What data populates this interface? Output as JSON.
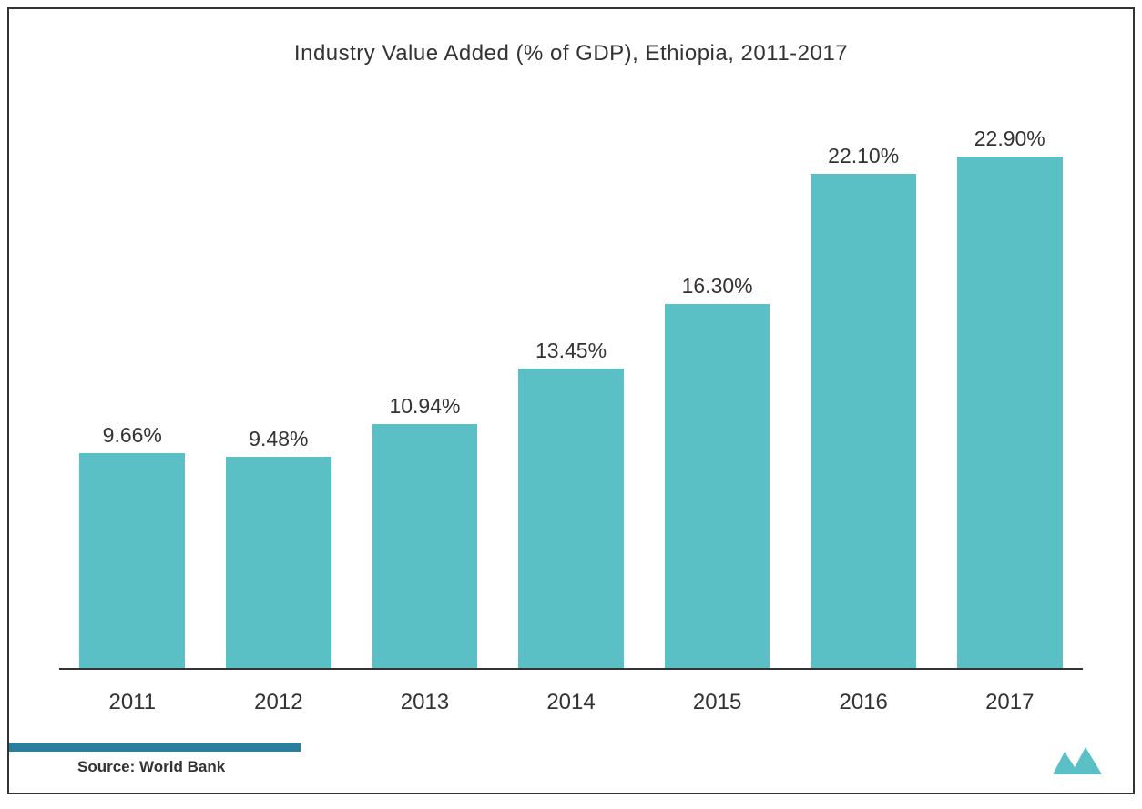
{
  "chart": {
    "type": "bar",
    "title": "Industry Value Added (% of GDP), Ethiopia, 2011-2017",
    "title_fontsize": 24,
    "title_color": "#333333",
    "categories": [
      "2011",
      "2012",
      "2013",
      "2014",
      "2015",
      "2016",
      "2017"
    ],
    "values": [
      9.66,
      9.48,
      10.94,
      13.45,
      16.3,
      22.1,
      22.9
    ],
    "labels": [
      "9.66%",
      "9.48%",
      "10.94%",
      "13.45%",
      "16.30%",
      "22.10%",
      "22.90%"
    ],
    "bar_color": "#5bc0c6",
    "max_value": 22.9,
    "y_scale_max": 25.0,
    "label_fontsize": 23,
    "xlabel_fontsize": 24,
    "axis_color": "#333333",
    "background_color": "#ffffff",
    "border_color": "#333333",
    "bar_width_percent": 72
  },
  "footer": {
    "source": "Source: World Bank",
    "source_fontsize": 17,
    "accent_bar_color": "#2b7f9e",
    "logo_color": "#5bc0c6"
  }
}
